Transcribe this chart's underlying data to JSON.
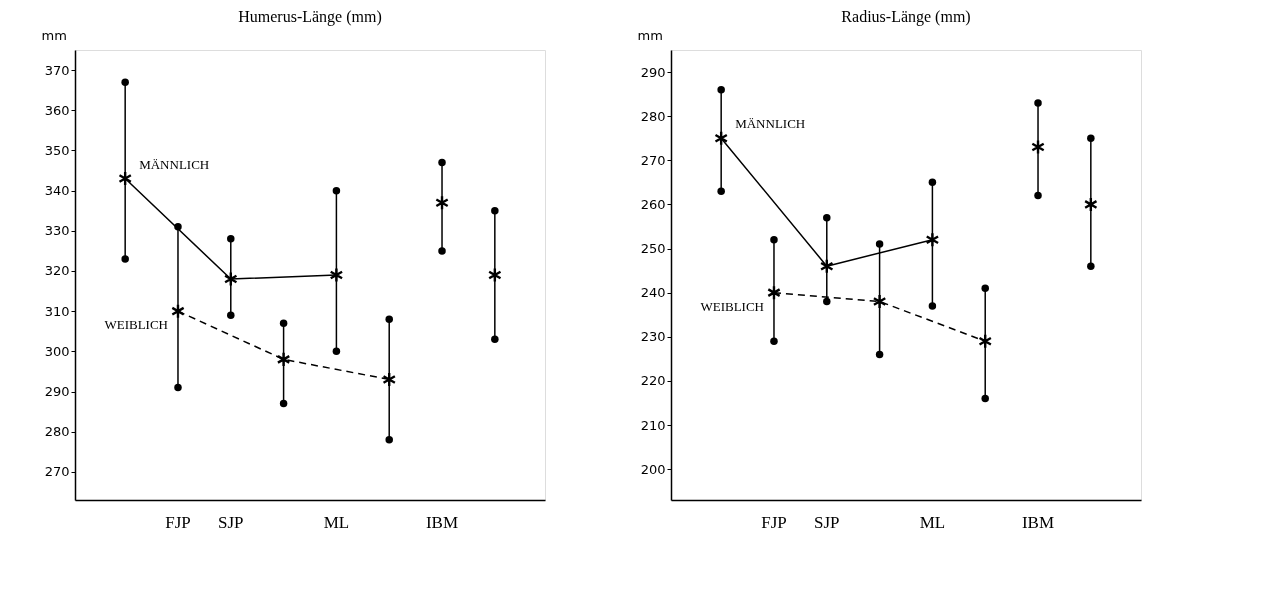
{
  "chart_data": [
    {
      "type": "line",
      "title": "Humerus-Länge (mm)",
      "ylabel": "mm",
      "categories": [
        null,
        "FJP",
        "SJP",
        null,
        "ML",
        null,
        "IBM",
        null
      ],
      "ylim": [
        263,
        375
      ],
      "yticks": [
        270,
        280,
        290,
        300,
        310,
        320,
        330,
        340,
        350,
        360,
        370
      ],
      "grid": false,
      "marker": "cross",
      "series": [
        {
          "name": "MÄNNLICH",
          "color": "#000000",
          "line_style": "solid",
          "values": [
            343,
            null,
            318,
            null,
            319,
            null,
            null,
            null
          ],
          "errors": [
            [
              323,
              367
            ],
            null,
            [
              309,
              328
            ],
            null,
            [
              300,
              340
            ],
            null,
            null,
            null
          ]
        },
        {
          "name": "WEIBLICH",
          "color": "#000000",
          "line_style": "dashed",
          "values": [
            null,
            310,
            null,
            298,
            null,
            293,
            null,
            null
          ],
          "errors": [
            null,
            [
              291,
              331
            ],
            null,
            [
              287,
              307
            ],
            null,
            [
              278,
              308
            ],
            null,
            null
          ]
        },
        {
          "type": "scatter",
          "color": "#000000",
          "values": [
            null,
            null,
            null,
            null,
            null,
            null,
            337,
            null
          ],
          "errors": [
            null,
            null,
            null,
            null,
            null,
            null,
            [
              325,
              347
            ],
            null
          ]
        },
        {
          "type": "scatter",
          "color": "#000000",
          "values": [
            null,
            null,
            null,
            null,
            null,
            null,
            null,
            319
          ],
          "errors": [
            null,
            null,
            null,
            null,
            null,
            null,
            null,
            [
              303,
              335
            ]
          ]
        }
      ]
    },
    {
      "type": "line",
      "title": "Radius-Länge (mm)",
      "ylabel": "mm",
      "categories": [
        null,
        "FJP",
        "SJP",
        null,
        "ML",
        null,
        "IBM",
        null
      ],
      "ylim": [
        193,
        295
      ],
      "yticks": [
        200,
        210,
        220,
        230,
        240,
        250,
        260,
        270,
        280,
        290
      ],
      "grid": false,
      "marker": "cross",
      "series": [
        {
          "name": "MÄNNLICH",
          "color": "#000000",
          "line_style": "solid",
          "values": [
            275,
            null,
            246,
            null,
            252,
            null,
            null,
            null
          ],
          "errors": [
            [
              263,
              286
            ],
            null,
            [
              238,
              257
            ],
            null,
            [
              237,
              265
            ],
            null,
            null,
            null
          ]
        },
        {
          "name": "WEIBLICH",
          "color": "#000000",
          "line_style": "dashed",
          "values": [
            null,
            240,
            null,
            238,
            null,
            229,
            null,
            null
          ],
          "errors": [
            null,
            [
              229,
              252
            ],
            null,
            [
              226,
              251
            ],
            null,
            [
              216,
              241
            ],
            null,
            null
          ]
        },
        {
          "type": "scatter",
          "color": "#000000",
          "values": [
            null,
            null,
            null,
            null,
            null,
            null,
            273,
            null
          ],
          "errors": [
            null,
            null,
            null,
            null,
            null,
            null,
            [
              262,
              283
            ],
            null
          ]
        },
        {
          "type": "scatter",
          "color": "#000000",
          "values": [
            null,
            null,
            null,
            null,
            null,
            null,
            null,
            260
          ],
          "errors": [
            null,
            null,
            null,
            null,
            null,
            null,
            null,
            [
              246,
              275
            ]
          ]
        }
      ]
    }
  ]
}
